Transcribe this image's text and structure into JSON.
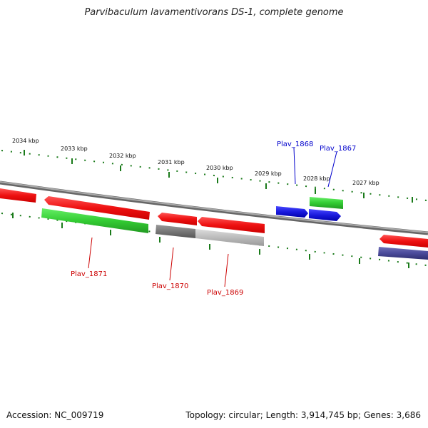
{
  "title": "Parvibaculum lavamentivorans DS-1, complete genome",
  "accession": "Accession: NC_009719",
  "summary": "Topology: circular; Length: 3,914,745 bp; Genes: 3,686",
  "colors": {
    "backbone": "#8a8a8a",
    "tick": "#1a7a1a",
    "gene_red": "#ee1111",
    "gene_green": "#33cc33",
    "gene_blue": "#1a1add",
    "gene_gray_dark": "#777777",
    "gene_gray_light": "#bbbbbb",
    "gene_purple": "#4a4a9a",
    "label_red": "#cc0000",
    "label_blue": "#0000cc"
  },
  "kbp_labels": [
    "2034 kbp",
    "2033 kbp",
    "2032 kbp",
    "2031 kbp",
    "2030 kbp",
    "2029 kbp",
    "2028 kbp",
    "2027 kbp"
  ],
  "gene_labels": {
    "g1868": "Plav_1868",
    "g1867": "Plav_1867",
    "g1871": "Plav_1871",
    "g1870": "Plav_1870",
    "g1869": "Plav_1869"
  }
}
